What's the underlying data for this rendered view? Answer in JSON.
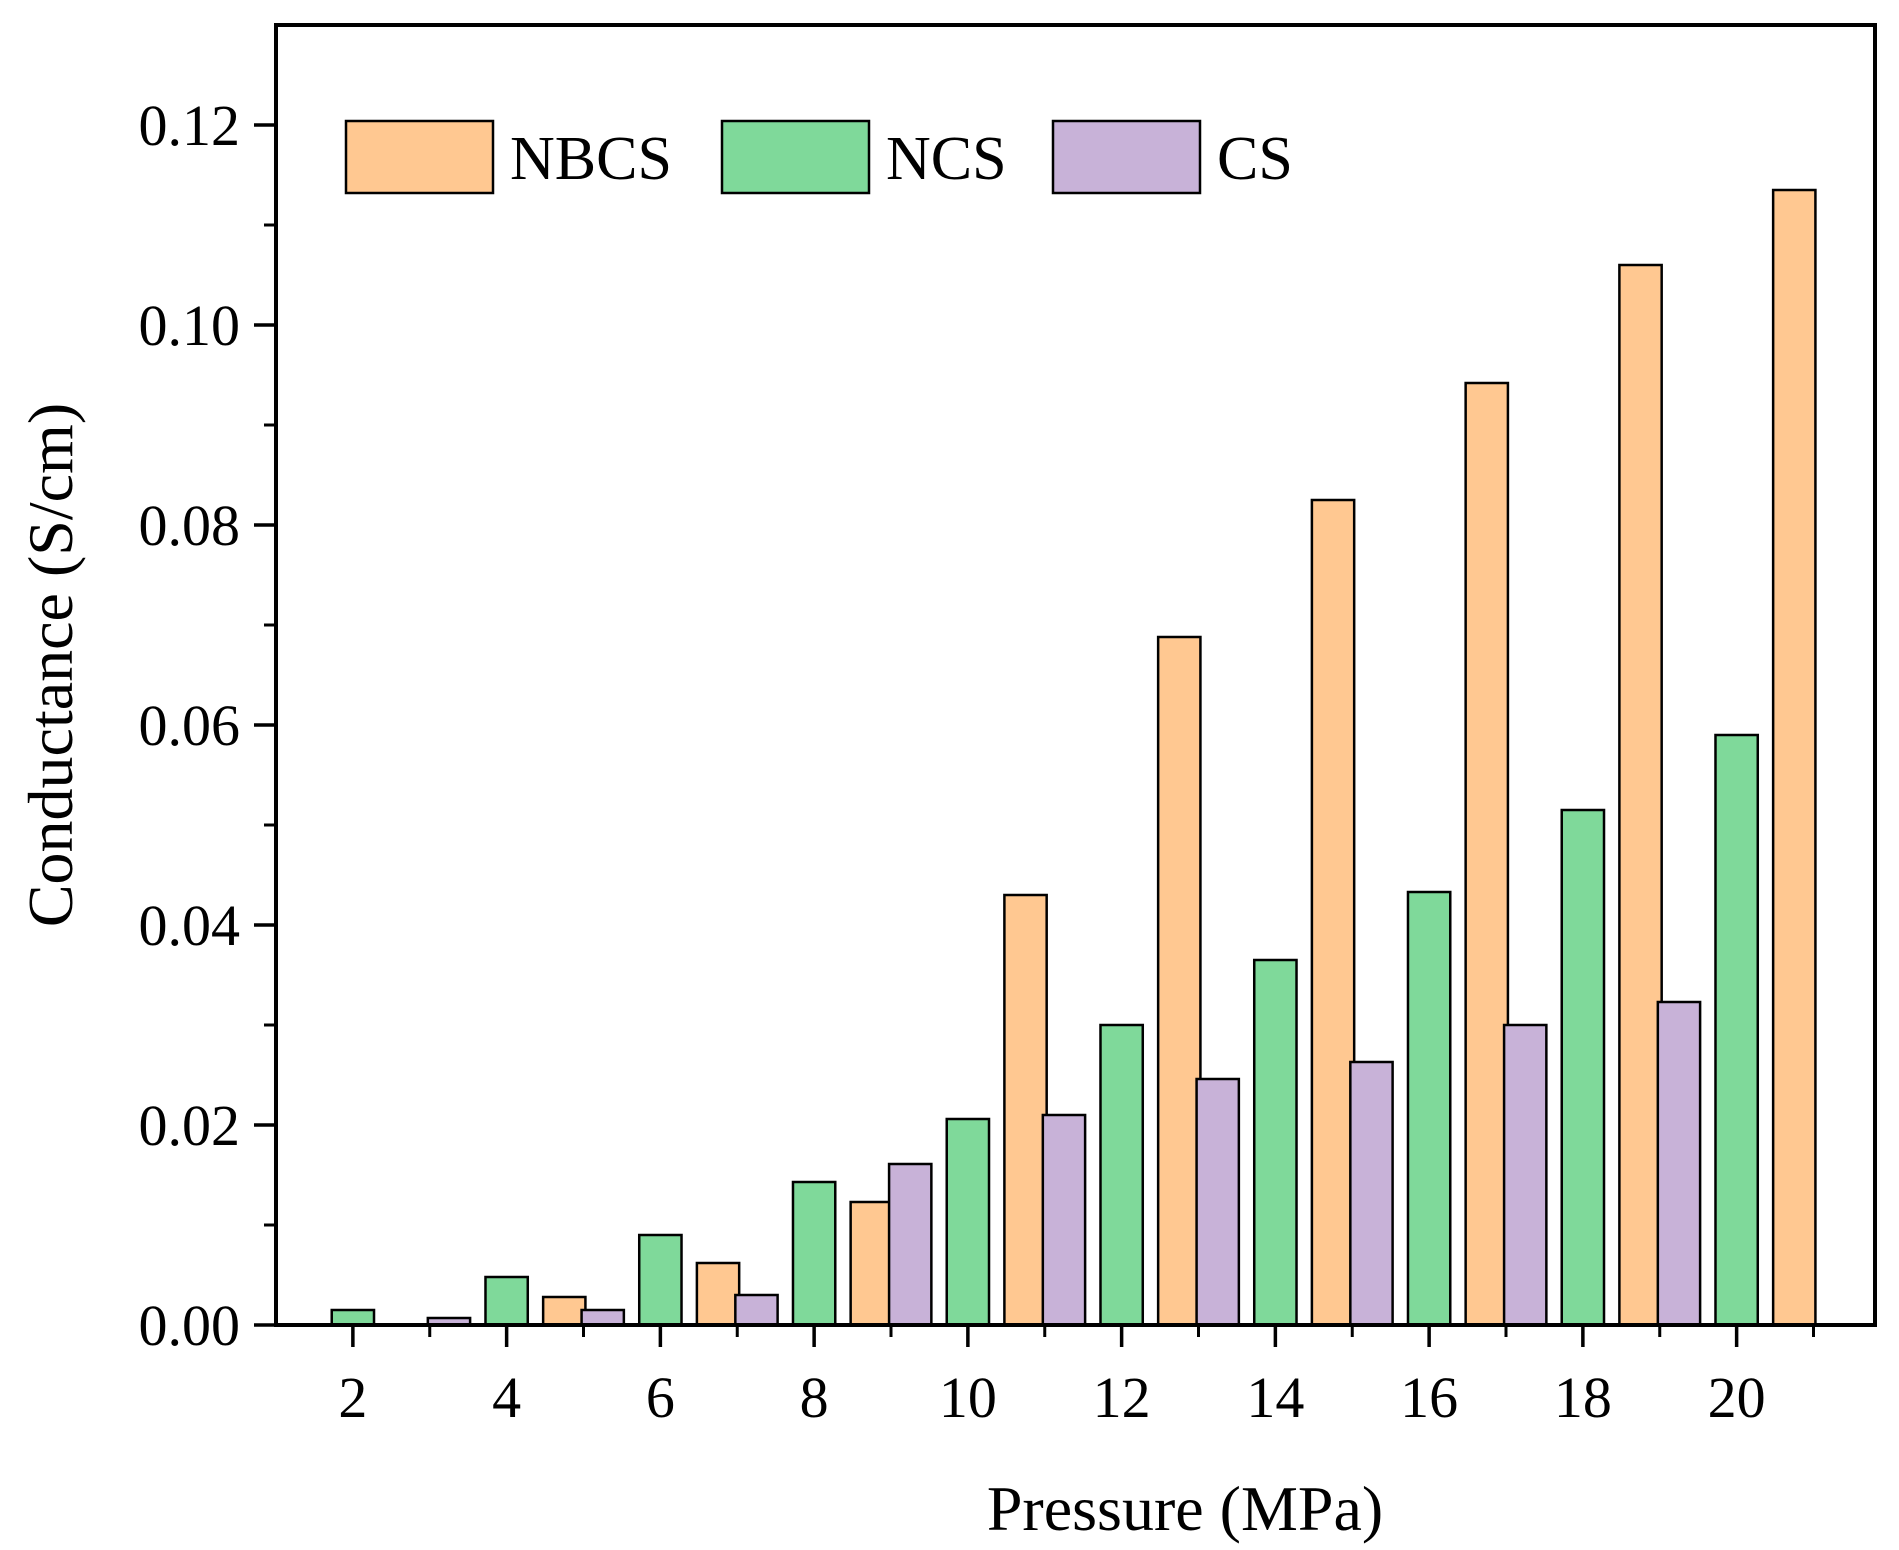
{
  "chart_data": {
    "type": "bar",
    "title": "",
    "xlabel": "Pressure (MPa)",
    "ylabel": "Conductance (S/cm)",
    "xlim": [
      1,
      21.8
    ],
    "ylim": [
      0,
      0.13
    ],
    "yticks": [
      0.0,
      0.02,
      0.04,
      0.06,
      0.08,
      0.1,
      0.12
    ],
    "ytick_labels": [
      "0.00",
      "0.02",
      "0.04",
      "0.06",
      "0.08",
      "0.10",
      "0.12"
    ],
    "xticks": [
      2,
      4,
      6,
      8,
      10,
      12,
      14,
      16,
      18,
      20
    ],
    "xtick_labels": [
      "2",
      "4",
      "6",
      "8",
      "10",
      "12",
      "14",
      "16",
      "18",
      "20"
    ],
    "minor_xticks": [
      3,
      5,
      7,
      9,
      11,
      13,
      15,
      17,
      19,
      21
    ],
    "minor_yticks": [
      0.01,
      0.03,
      0.05,
      0.07,
      0.09,
      0.11
    ],
    "bar_width": 0.55,
    "series": [
      {
        "name": "NBCS",
        "color": "#FFC891",
        "x": [
          4.75,
          6.75,
          8.75,
          10.75,
          12.75,
          14.75,
          16.75,
          18.75,
          20.75
        ],
        "values": [
          0.0028,
          0.0062,
          0.0123,
          0.043,
          0.0688,
          0.0825,
          0.0942,
          0.106,
          0.1135
        ]
      },
      {
        "name": "NCS",
        "color": "#7FD99A",
        "x": [
          2,
          4,
          6,
          8,
          10,
          12,
          14,
          16,
          18,
          20
        ],
        "values": [
          0.0015,
          0.0048,
          0.009,
          0.0143,
          0.0206,
          0.03,
          0.0365,
          0.0433,
          0.0515,
          0.059
        ]
      },
      {
        "name": "CS",
        "color": "#C8B2D8",
        "x": [
          3.25,
          5.25,
          7.25,
          9.25,
          11.25,
          13.25,
          15.25,
          17.25,
          19.25
        ],
        "values": [
          0.0007,
          0.0015,
          0.003,
          0.0161,
          0.021,
          0.0246,
          0.0263,
          0.03,
          0.0323
        ]
      }
    ],
    "legend": {
      "position": "top-left",
      "orientation": "horizontal",
      "entries": [
        "NBCS",
        "NCS",
        "CS"
      ]
    },
    "grid": false
  }
}
